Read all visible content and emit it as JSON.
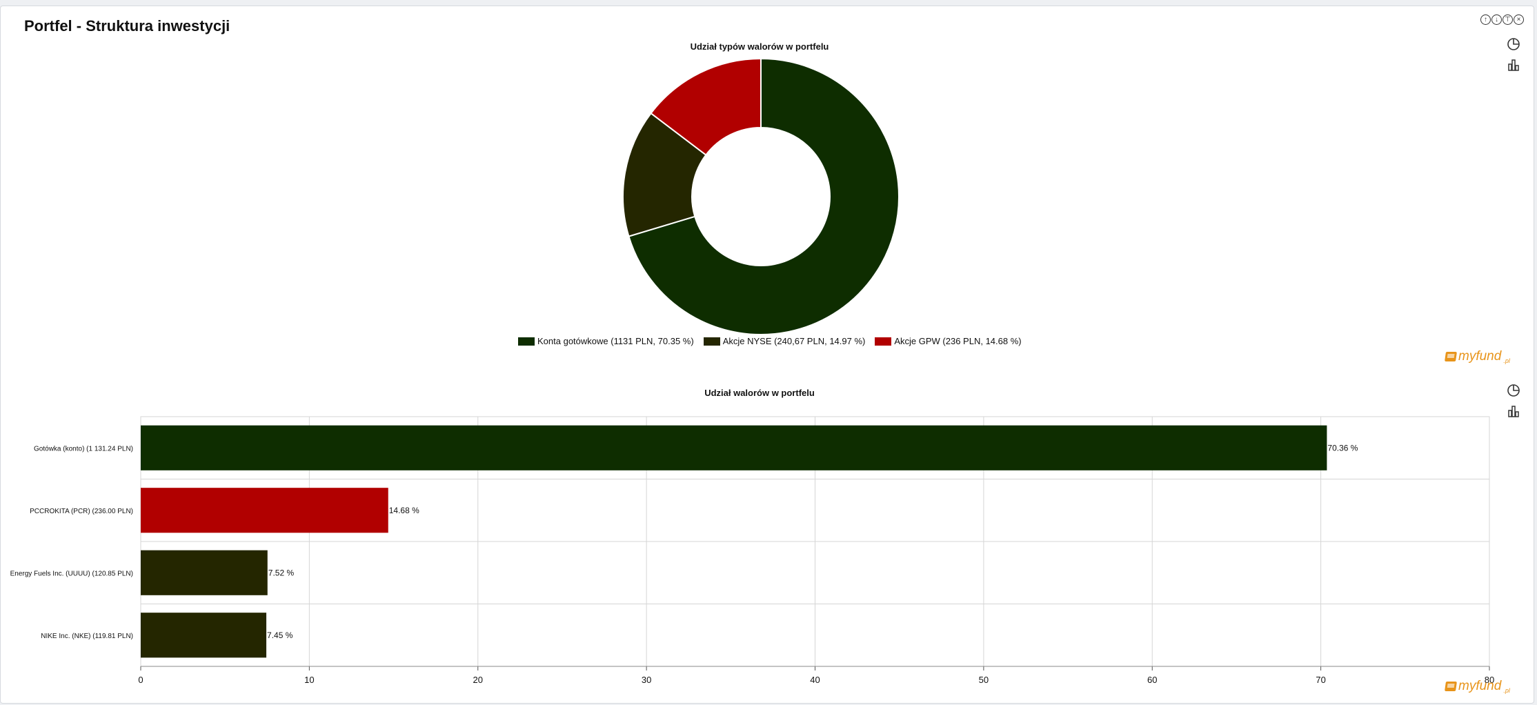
{
  "page": {
    "title": "Portfel - Struktura inwestycji",
    "controls": [
      "up-icon",
      "down-icon",
      "pin-icon",
      "close-icon"
    ],
    "logo_text": "myfund",
    "logo_suffix": ".pl"
  },
  "chart_data": [
    {
      "type": "pie",
      "donut": true,
      "title": "Udział typów walorów w portfelu",
      "slices": [
        {
          "label": "Konta gotówkowe (1131 PLN, 70.35 %)",
          "value": 70.35,
          "color": "#0e2d00"
        },
        {
          "label": "Akcje NYSE (240,67 PLN, 14.97 %)",
          "value": 14.97,
          "color": "#242600"
        },
        {
          "label": "Akcje GPW (236 PLN, 14.68 %)",
          "value": 14.68,
          "color": "#b10000"
        }
      ],
      "legend": "bottom"
    },
    {
      "type": "bar",
      "orientation": "horizontal",
      "title": "Udział walorów w portfelu",
      "categories": [
        "Gotówka (konto) (1 131.24 PLN)",
        "PCCROKITA (PCR) (236.00 PLN)",
        "Energy Fuels Inc. (UUUU) (120.85 PLN)",
        "NIKE Inc. (NKE) (119.81 PLN)"
      ],
      "values": [
        70.36,
        14.68,
        7.52,
        7.45
      ],
      "data_labels": [
        "70.36 %",
        "14.68 %",
        "7.52 %",
        "7.45 %"
      ],
      "colors": [
        "#0e2d00",
        "#b10000",
        "#242600",
        "#242600"
      ],
      "xlim": [
        0,
        80
      ],
      "xticks": [
        0,
        10,
        20,
        30,
        40,
        50,
        60,
        70,
        80
      ],
      "grid": true
    }
  ]
}
